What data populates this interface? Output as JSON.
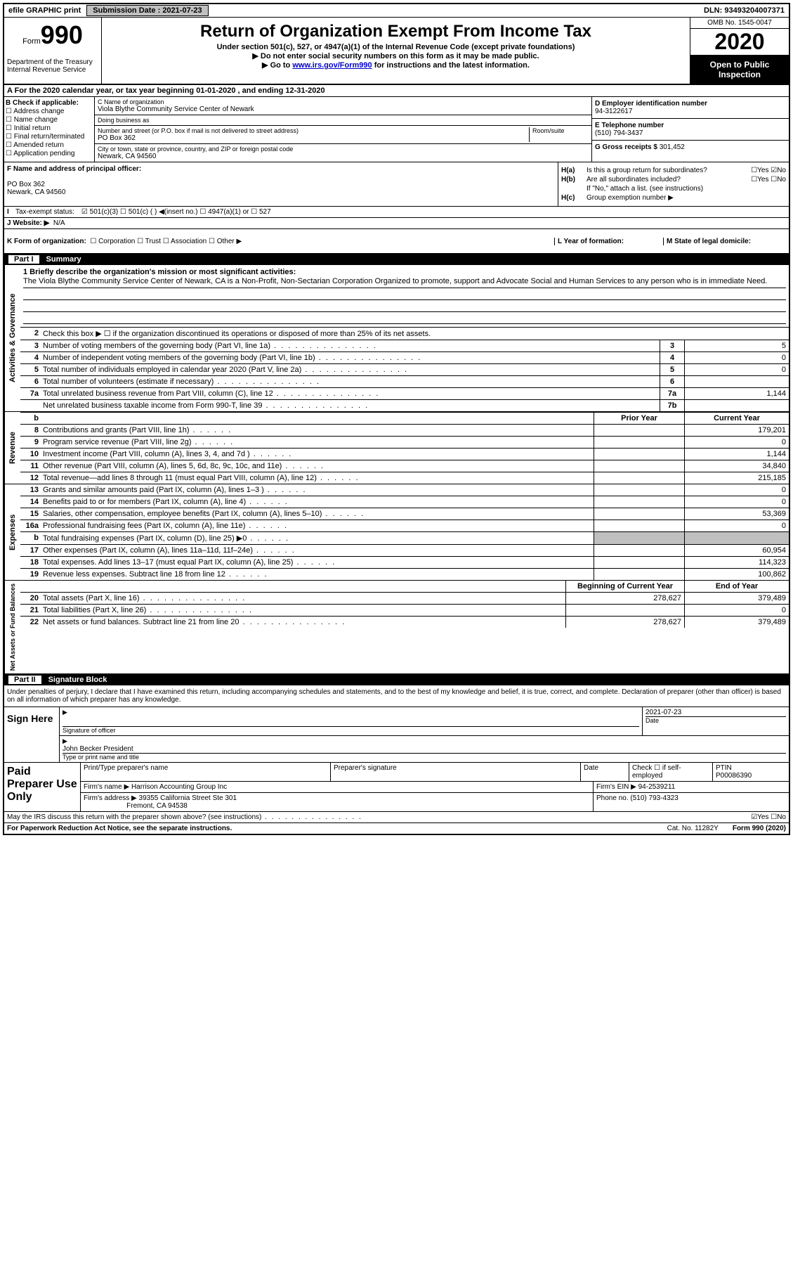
{
  "topbar": {
    "efile": "efile GRAPHIC print",
    "submission_label": "Submission Date : 2021-07-23",
    "dln": "DLN: 93493204007371"
  },
  "header": {
    "form_word": "Form",
    "form_num": "990",
    "dept": "Department of the Treasury\nInternal Revenue Service",
    "title": "Return of Organization Exempt From Income Tax",
    "subtitle": "Under section 501(c), 527, or 4947(a)(1) of the Internal Revenue Code (except private foundations)",
    "note1": "▶ Do not enter social security numbers on this form as it may be made public.",
    "note2_pre": "▶ Go to ",
    "note2_link": "www.irs.gov/Form990",
    "note2_post": " for instructions and the latest information.",
    "omb": "OMB No. 1545-0047",
    "year": "2020",
    "open": "Open to Public Inspection"
  },
  "section_a": "A For the 2020 calendar year, or tax year beginning 01-01-2020    , and ending 12-31-2020",
  "col_b": {
    "hdr": "B Check if applicable:",
    "items": [
      "Address change",
      "Name change",
      "Initial return",
      "Final return/terminated",
      "Amended return",
      "Application pending"
    ]
  },
  "col_c": {
    "name_lbl": "C Name of organization",
    "name": "Viola Blythe Community Service Center of Newark",
    "dba_lbl": "Doing business as",
    "dba": "",
    "addr_lbl": "Number and street (or P.O. box if mail is not delivered to street address)",
    "room_lbl": "Room/suite",
    "addr": "PO Box 362",
    "city_lbl": "City or town, state or province, country, and ZIP or foreign postal code",
    "city": "Newark, CA  94560"
  },
  "col_de": {
    "d_lbl": "D Employer identification number",
    "d_val": "94-3122617",
    "e_lbl": "E Telephone number",
    "e_val": "(510) 794-3437",
    "g_lbl": "G Gross receipts $",
    "g_val": "301,452"
  },
  "row_f": {
    "lbl": "F Name and address of principal officer:",
    "addr1": "PO Box 362",
    "addr2": "Newark, CA  94560"
  },
  "col_h": {
    "ha": "Is this a group return for subordinates?",
    "ha_ans": "☐Yes ☑No",
    "hb": "Are all subordinates included?",
    "hb_ans": "☐Yes ☐No",
    "hb_note": "If \"No,\" attach a list. (see instructions)",
    "hc": "Group exemption number ▶"
  },
  "row_i": {
    "lbl": "Tax-exempt status:",
    "opts": "☑ 501(c)(3)    ☐ 501(c) (  ) ◀(insert no.)    ☐ 4947(a)(1) or   ☐ 527"
  },
  "row_j": {
    "lbl": "J   Website: ▶",
    "val": "N/A"
  },
  "row_k": {
    "lbl": "K Form of organization:",
    "opts": "☐ Corporation  ☐ Trust  ☐ Association  ☐ Other ▶",
    "l_lbl": "L Year of formation:",
    "m_lbl": "M State of legal domicile:"
  },
  "part1": {
    "header": "Part I",
    "title": "Summary",
    "side1": "Activities & Governance",
    "side2": "Revenue",
    "side3": "Expenses",
    "side4": "Net Assets or Fund Balances",
    "line1_lbl": "1  Briefly describe the organization's mission or most significant activities:",
    "mission": "The Viola Blythe Community Service Center of Newark, CA is a Non-Profit, Non-Sectarian Corporation Organized to promote, support and Advocate Social and Human Services to any person who is in immediate Need.",
    "line2": "Check this box ▶ ☐ if the organization discontinued its operations or disposed of more than 25% of its net assets.",
    "rows_gov": [
      {
        "n": "3",
        "d": "Number of voting members of the governing body (Part VI, line 1a)",
        "b": "3",
        "v": "5"
      },
      {
        "n": "4",
        "d": "Number of independent voting members of the governing body (Part VI, line 1b)",
        "b": "4",
        "v": "0"
      },
      {
        "n": "5",
        "d": "Total number of individuals employed in calendar year 2020 (Part V, line 2a)",
        "b": "5",
        "v": "0"
      },
      {
        "n": "6",
        "d": "Total number of volunteers (estimate if necessary)",
        "b": "6",
        "v": ""
      },
      {
        "n": "7a",
        "d": "Total unrelated business revenue from Part VIII, column (C), line 12",
        "b": "7a",
        "v": "1,144"
      },
      {
        "n": "",
        "d": "Net unrelated business taxable income from Form 990-T, line 39",
        "b": "7b",
        "v": ""
      }
    ],
    "hdr_prior": "Prior Year",
    "hdr_current": "Current Year",
    "rows_rev": [
      {
        "n": "8",
        "d": "Contributions and grants (Part VIII, line 1h)",
        "p": "",
        "c": "179,201"
      },
      {
        "n": "9",
        "d": "Program service revenue (Part VIII, line 2g)",
        "p": "",
        "c": "0"
      },
      {
        "n": "10",
        "d": "Investment income (Part VIII, column (A), lines 3, 4, and 7d )",
        "p": "",
        "c": "1,144"
      },
      {
        "n": "11",
        "d": "Other revenue (Part VIII, column (A), lines 5, 6d, 8c, 9c, 10c, and 11e)",
        "p": "",
        "c": "34,840"
      },
      {
        "n": "12",
        "d": "Total revenue—add lines 8 through 11 (must equal Part VIII, column (A), line 12)",
        "p": "",
        "c": "215,185"
      }
    ],
    "rows_exp": [
      {
        "n": "13",
        "d": "Grants and similar amounts paid (Part IX, column (A), lines 1–3 )",
        "p": "",
        "c": "0"
      },
      {
        "n": "14",
        "d": "Benefits paid to or for members (Part IX, column (A), line 4)",
        "p": "",
        "c": "0"
      },
      {
        "n": "15",
        "d": "Salaries, other compensation, employee benefits (Part IX, column (A), lines 5–10)",
        "p": "",
        "c": "53,369"
      },
      {
        "n": "16a",
        "d": "Professional fundraising fees (Part IX, column (A), line 11e)",
        "p": "",
        "c": "0"
      },
      {
        "n": "b",
        "d": "Total fundraising expenses (Part IX, column (D), line 25) ▶0",
        "p": "shaded",
        "c": "shaded"
      },
      {
        "n": "17",
        "d": "Other expenses (Part IX, column (A), lines 11a–11d, 11f–24e)",
        "p": "",
        "c": "60,954"
      },
      {
        "n": "18",
        "d": "Total expenses. Add lines 13–17 (must equal Part IX, column (A), line 25)",
        "p": "",
        "c": "114,323"
      },
      {
        "n": "19",
        "d": "Revenue less expenses. Subtract line 18 from line 12",
        "p": "",
        "c": "100,862"
      }
    ],
    "hdr_begin": "Beginning of Current Year",
    "hdr_end": "End of Year",
    "rows_net": [
      {
        "n": "20",
        "d": "Total assets (Part X, line 16)",
        "p": "278,627",
        "c": "379,489"
      },
      {
        "n": "21",
        "d": "Total liabilities (Part X, line 26)",
        "p": "",
        "c": "0"
      },
      {
        "n": "22",
        "d": "Net assets or fund balances. Subtract line 21 from line 20",
        "p": "278,627",
        "c": "379,489"
      }
    ]
  },
  "part2": {
    "header": "Part II",
    "title": "Signature Block",
    "decl": "Under penalties of perjury, I declare that I have examined this return, including accompanying schedules and statements, and to the best of my knowledge and belief, it is true, correct, and complete. Declaration of preparer (other than officer) is based on all information of which preparer has any knowledge.",
    "sign_here": "Sign Here",
    "sig_officer": "Signature of officer",
    "sig_date_lbl": "Date",
    "sig_date": "2021-07-23",
    "officer_name": "John Becker  President",
    "officer_lbl": "Type or print name and title",
    "paid": "Paid Preparer Use Only",
    "prep_name_lbl": "Print/Type preparer's name",
    "prep_sig_lbl": "Preparer's signature",
    "date_lbl": "Date",
    "check_lbl": "Check ☐ if self-employed",
    "ptin_lbl": "PTIN",
    "ptin": "P00086390",
    "firm_name_lbl": "Firm's name    ▶",
    "firm_name": "Harrison Accounting Group Inc",
    "firm_ein_lbl": "Firm's EIN ▶",
    "firm_ein": "94-2539211",
    "firm_addr_lbl": "Firm's address ▶",
    "firm_addr1": "39355 California Street Ste 301",
    "firm_addr2": "Fremont, CA  94538",
    "phone_lbl": "Phone no.",
    "phone": "(510) 793-4323",
    "discuss": "May the IRS discuss this return with the preparer shown above? (see instructions)",
    "discuss_ans": "☑Yes  ☐No"
  },
  "footer": {
    "left": "For Paperwork Reduction Act Notice, see the separate instructions.",
    "mid": "Cat. No. 11282Y",
    "right": "Form 990 (2020)"
  }
}
